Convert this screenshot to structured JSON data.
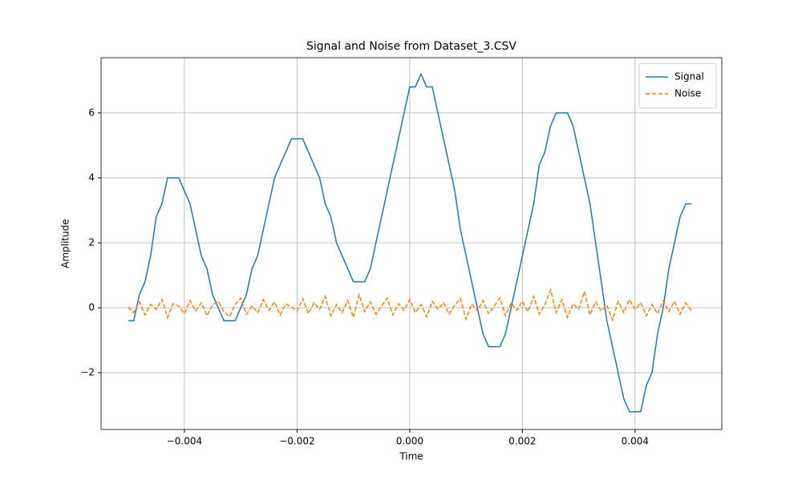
{
  "chart_data": {
    "type": "line",
    "title": "Signal and Noise from Dataset_3.CSV",
    "x_label": "Time",
    "y_label": "Amplitude",
    "x": [
      -0.005,
      -0.0049,
      -0.0048,
      -0.0047,
      -0.0046,
      -0.0045,
      -0.0044,
      -0.0043,
      -0.0042,
      -0.0041,
      -0.004,
      -0.0039,
      -0.0038,
      -0.0037,
      -0.0036,
      -0.0035,
      -0.0034,
      -0.0033,
      -0.0032,
      -0.0031,
      -0.003,
      -0.0029,
      -0.0028,
      -0.0027,
      -0.0026,
      -0.0025,
      -0.0024,
      -0.0023,
      -0.0022,
      -0.0021,
      -0.002,
      -0.0019,
      -0.0018,
      -0.0017,
      -0.0016,
      -0.0015,
      -0.0014,
      -0.0013,
      -0.0012,
      -0.0011,
      -0.001,
      -0.0009,
      -0.0008,
      -0.0007,
      -0.0006,
      -0.0005,
      -0.0004,
      -0.0003,
      -0.0002,
      -0.0001,
      0,
      0.0001,
      0.0002,
      0.0003,
      0.0004,
      0.0005,
      0.0006,
      0.0007,
      0.0008,
      0.0009,
      0.001,
      0.0011,
      0.0012,
      0.0013,
      0.0014,
      0.0015,
      0.0016,
      0.0017,
      0.0018,
      0.0019,
      0.002,
      0.0021,
      0.0022,
      0.0023,
      0.0024,
      0.0025,
      0.0026,
      0.0027,
      0.0028,
      0.0029,
      0.003,
      0.0031,
      0.0032,
      0.0033,
      0.0034,
      0.0035,
      0.0036,
      0.0037,
      0.0038,
      0.0039,
      0.004,
      0.0041,
      0.0042,
      0.0043,
      0.0044,
      0.0045,
      0.0046,
      0.0047,
      0.0048,
      0.0049,
      0.005
    ],
    "series": [
      {
        "name": "Signal",
        "color": "#1f77b4",
        "dash": false,
        "values": [
          -0.4,
          -0.4,
          0.4,
          0.8,
          1.6,
          2.8,
          3.2,
          4.0,
          4.0,
          4.0,
          3.6,
          3.2,
          2.4,
          1.6,
          1.2,
          0.4,
          0.0,
          -0.4,
          -0.4,
          -0.4,
          0.0,
          0.4,
          1.2,
          1.6,
          2.4,
          3.2,
          4.0,
          4.4,
          4.8,
          5.2,
          5.2,
          5.2,
          4.8,
          4.4,
          4.0,
          3.2,
          2.8,
          2.0,
          1.6,
          1.2,
          0.8,
          0.8,
          0.8,
          1.2,
          2.0,
          2.8,
          3.6,
          4.4,
          5.2,
          6.0,
          6.8,
          6.8,
          7.2,
          6.8,
          6.8,
          6.0,
          5.2,
          4.4,
          3.6,
          2.4,
          1.6,
          0.8,
          0.0,
          -0.8,
          -1.2,
          -1.2,
          -1.2,
          -0.8,
          0.0,
          0.8,
          1.6,
          2.4,
          3.2,
          4.4,
          4.8,
          5.6,
          6.0,
          6.0,
          6.0,
          5.6,
          4.8,
          4.0,
          3.2,
          2.0,
          0.8,
          -0.4,
          -1.2,
          -2.0,
          -2.8,
          -3.2,
          -3.2,
          -3.2,
          -2.4,
          -2.0,
          -0.8,
          0.0,
          1.2,
          2.0,
          2.8,
          3.2,
          3.2
        ]
      },
      {
        "name": "Noise",
        "color": "#ff7f0e",
        "dash": true,
        "values": [
          0.02,
          -0.15,
          0.18,
          -0.22,
          0.1,
          -0.05,
          0.25,
          -0.3,
          0.12,
          0.05,
          -0.18,
          0.22,
          -0.1,
          0.15,
          -0.25,
          0.08,
          0.2,
          -0.12,
          -0.28,
          0.1,
          0.3,
          -0.2,
          0.05,
          -0.15,
          0.25,
          -0.08,
          0.18,
          -0.22,
          0.12,
          0.02,
          -0.1,
          0.28,
          -0.18,
          0.15,
          -0.05,
          0.35,
          -0.25,
          0.1,
          -0.15,
          0.22,
          -0.3,
          0.4,
          -0.12,
          0.18,
          -0.2,
          0.05,
          0.3,
          -0.22,
          0.12,
          -0.08,
          0.25,
          -0.15,
          0.1,
          -0.28,
          0.2,
          -0.05,
          0.15,
          -0.2,
          0.08,
          0.28,
          -0.35,
          0.12,
          -0.1,
          0.22,
          -0.18,
          0.05,
          0.3,
          -0.25,
          0.15,
          -0.08,
          0.2,
          -0.12,
          0.35,
          -0.2,
          0.1,
          0.55,
          -0.15,
          0.25,
          -0.3,
          0.12,
          -0.05,
          0.5,
          -0.22,
          0.18,
          -0.1,
          0.08,
          -0.38,
          0.2,
          -0.15,
          0.25,
          -0.05,
          0.15,
          -0.25,
          0.1,
          -0.18,
          0.22,
          -0.12,
          0.2,
          -0.2,
          0.15,
          -0.1
        ]
      }
    ],
    "xlim": [
      -0.00548,
      0.00554
    ],
    "ylim": [
      -3.75,
      7.7
    ],
    "xticks": [
      {
        "value": -0.004,
        "label": "−0.004"
      },
      {
        "value": -0.002,
        "label": "−0.002"
      },
      {
        "value": 0,
        "label": "0.000"
      },
      {
        "value": 0.002,
        "label": "0.002"
      },
      {
        "value": 0.004,
        "label": "0.004"
      }
    ],
    "yticks": [
      {
        "value": -2,
        "label": "−2"
      },
      0,
      2,
      4,
      6
    ],
    "grid": true,
    "legend": "upper right"
  }
}
